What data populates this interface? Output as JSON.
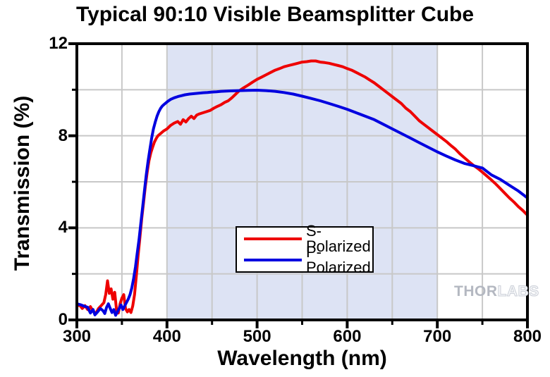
{
  "chart_data": {
    "type": "line",
    "title": "Typical 90:10 Visible Beamsplitter Cube",
    "xlabel": "Wavelength (nm)",
    "ylabel": "Transmission (%)",
    "xlim": [
      300,
      800
    ],
    "ylim": [
      0,
      12
    ],
    "x_major_ticks": [
      300,
      400,
      500,
      600,
      700,
      800
    ],
    "x_minor_ticks": [
      350,
      450,
      550,
      650,
      750
    ],
    "y_major_ticks": [
      0,
      4,
      8,
      12
    ],
    "y_minor_ticks": [
      2,
      6,
      10
    ],
    "grid": {
      "x_lines": [
        350,
        400,
        450,
        500,
        550,
        600,
        650,
        700,
        750
      ],
      "y_lines": [
        2,
        4,
        6,
        8,
        10
      ],
      "color": "#c8c8c8"
    },
    "shaded_band": {
      "x_from": 400,
      "x_to": 700,
      "color": "#dde3f4",
      "meaning": "visible wavelength range"
    },
    "legend": {
      "position": "inside-bottom-center"
    },
    "series": [
      {
        "name": "S-Polarized",
        "color": "#ee0000",
        "points": [
          [
            300,
            0.6
          ],
          [
            303,
            0.65
          ],
          [
            306,
            0.5
          ],
          [
            309,
            0.62
          ],
          [
            312,
            0.45
          ],
          [
            315,
            0.58
          ],
          [
            318,
            0.38
          ],
          [
            321,
            0.28
          ],
          [
            324,
            0.5
          ],
          [
            327,
            0.62
          ],
          [
            330,
            0.75
          ],
          [
            332,
            1.1
          ],
          [
            334,
            1.7
          ],
          [
            336,
            1.15
          ],
          [
            338,
            1.35
          ],
          [
            340,
            0.9
          ],
          [
            342,
            1.2
          ],
          [
            344,
            0.45
          ],
          [
            346,
            0.3
          ],
          [
            348,
            0.7
          ],
          [
            350,
            0.95
          ],
          [
            352,
            1.1
          ],
          [
            354,
            0.5
          ],
          [
            356,
            0.35
          ],
          [
            358,
            0.45
          ],
          [
            360,
            0.32
          ],
          [
            362,
            0.6
          ],
          [
            364,
            1.1
          ],
          [
            366,
            1.9
          ],
          [
            368,
            2.8
          ],
          [
            370,
            3.6
          ],
          [
            372,
            4.4
          ],
          [
            374,
            5.1
          ],
          [
            376,
            5.8
          ],
          [
            378,
            6.4
          ],
          [
            380,
            6.9
          ],
          [
            382,
            7.25
          ],
          [
            384,
            7.5
          ],
          [
            386,
            7.72
          ],
          [
            388,
            7.88
          ],
          [
            390,
            8.0
          ],
          [
            393,
            8.1
          ],
          [
            396,
            8.2
          ],
          [
            400,
            8.3
          ],
          [
            404,
            8.45
          ],
          [
            408,
            8.55
          ],
          [
            412,
            8.62
          ],
          [
            415,
            8.5
          ],
          [
            418,
            8.7
          ],
          [
            421,
            8.6
          ],
          [
            424,
            8.75
          ],
          [
            427,
            8.85
          ],
          [
            430,
            8.75
          ],
          [
            433,
            8.9
          ],
          [
            436,
            8.95
          ],
          [
            440,
            9.0
          ],
          [
            444,
            9.05
          ],
          [
            448,
            9.1
          ],
          [
            452,
            9.2
          ],
          [
            456,
            9.28
          ],
          [
            460,
            9.35
          ],
          [
            464,
            9.45
          ],
          [
            468,
            9.52
          ],
          [
            472,
            9.65
          ],
          [
            476,
            9.8
          ],
          [
            480,
            9.95
          ],
          [
            485,
            10.08
          ],
          [
            490,
            10.2
          ],
          [
            495,
            10.33
          ],
          [
            500,
            10.45
          ],
          [
            505,
            10.55
          ],
          [
            510,
            10.65
          ],
          [
            515,
            10.75
          ],
          [
            520,
            10.85
          ],
          [
            525,
            10.92
          ],
          [
            530,
            11.0
          ],
          [
            535,
            11.05
          ],
          [
            540,
            11.1
          ],
          [
            545,
            11.15
          ],
          [
            550,
            11.2
          ],
          [
            555,
            11.22
          ],
          [
            560,
            11.25
          ],
          [
            565,
            11.25
          ],
          [
            570,
            11.2
          ],
          [
            575,
            11.18
          ],
          [
            580,
            11.15
          ],
          [
            585,
            11.1
          ],
          [
            590,
            11.05
          ],
          [
            595,
            11.0
          ],
          [
            600,
            10.92
          ],
          [
            605,
            10.85
          ],
          [
            610,
            10.75
          ],
          [
            615,
            10.65
          ],
          [
            620,
            10.55
          ],
          [
            625,
            10.42
          ],
          [
            630,
            10.3
          ],
          [
            635,
            10.15
          ],
          [
            640,
            10.0
          ],
          [
            645,
            9.85
          ],
          [
            650,
            9.7
          ],
          [
            655,
            9.55
          ],
          [
            660,
            9.4
          ],
          [
            665,
            9.2
          ],
          [
            670,
            9.05
          ],
          [
            675,
            8.85
          ],
          [
            680,
            8.65
          ],
          [
            685,
            8.5
          ],
          [
            690,
            8.35
          ],
          [
            695,
            8.2
          ],
          [
            700,
            8.05
          ],
          [
            705,
            7.9
          ],
          [
            710,
            7.75
          ],
          [
            715,
            7.58
          ],
          [
            720,
            7.42
          ],
          [
            725,
            7.22
          ],
          [
            730,
            7.05
          ],
          [
            735,
            6.88
          ],
          [
            740,
            6.72
          ],
          [
            745,
            6.58
          ],
          [
            750,
            6.42
          ],
          [
            755,
            6.25
          ],
          [
            760,
            6.08
          ],
          [
            765,
            5.9
          ],
          [
            770,
            5.7
          ],
          [
            775,
            5.5
          ],
          [
            780,
            5.3
          ],
          [
            785,
            5.12
          ],
          [
            790,
            4.92
          ],
          [
            795,
            4.75
          ],
          [
            800,
            4.55
          ]
        ]
      },
      {
        "name": "P-Polarized",
        "color": "#0000e0",
        "points": [
          [
            300,
            0.7
          ],
          [
            304,
            0.66
          ],
          [
            308,
            0.6
          ],
          [
            312,
            0.55
          ],
          [
            315,
            0.3
          ],
          [
            318,
            0.45
          ],
          [
            320,
            0.22
          ],
          [
            323,
            0.35
          ],
          [
            326,
            0.5
          ],
          [
            329,
            0.4
          ],
          [
            331,
            0.28
          ],
          [
            333,
            0.55
          ],
          [
            335,
            0.7
          ],
          [
            337,
            0.5
          ],
          [
            339,
            0.32
          ],
          [
            341,
            0.45
          ],
          [
            343,
            0.2
          ],
          [
            345,
            0.35
          ],
          [
            347,
            0.5
          ],
          [
            349,
            0.65
          ],
          [
            351,
            0.45
          ],
          [
            353,
            0.6
          ],
          [
            355,
            0.75
          ],
          [
            357,
            0.9
          ],
          [
            359,
            1.1
          ],
          [
            361,
            1.4
          ],
          [
            363,
            1.8
          ],
          [
            365,
            2.3
          ],
          [
            367,
            2.9
          ],
          [
            369,
            3.5
          ],
          [
            371,
            4.2
          ],
          [
            373,
            4.9
          ],
          [
            375,
            5.6
          ],
          [
            377,
            6.3
          ],
          [
            379,
            6.9
          ],
          [
            381,
            7.4
          ],
          [
            383,
            7.9
          ],
          [
            385,
            8.3
          ],
          [
            387,
            8.6
          ],
          [
            389,
            8.85
          ],
          [
            391,
            9.05
          ],
          [
            393,
            9.2
          ],
          [
            395,
            9.3
          ],
          [
            398,
            9.4
          ],
          [
            401,
            9.5
          ],
          [
            404,
            9.58
          ],
          [
            408,
            9.65
          ],
          [
            412,
            9.7
          ],
          [
            416,
            9.74
          ],
          [
            420,
            9.78
          ],
          [
            425,
            9.81
          ],
          [
            430,
            9.83
          ],
          [
            435,
            9.85
          ],
          [
            440,
            9.87
          ],
          [
            445,
            9.88
          ],
          [
            450,
            9.9
          ],
          [
            455,
            9.91
          ],
          [
            460,
            9.93
          ],
          [
            470,
            9.95
          ],
          [
            480,
            9.96
          ],
          [
            490,
            9.97
          ],
          [
            500,
            9.98
          ],
          [
            510,
            9.96
          ],
          [
            520,
            9.93
          ],
          [
            530,
            9.88
          ],
          [
            540,
            9.81
          ],
          [
            550,
            9.72
          ],
          [
            560,
            9.62
          ],
          [
            570,
            9.52
          ],
          [
            580,
            9.4
          ],
          [
            590,
            9.28
          ],
          [
            600,
            9.15
          ],
          [
            610,
            9.0
          ],
          [
            620,
            8.85
          ],
          [
            630,
            8.7
          ],
          [
            640,
            8.5
          ],
          [
            650,
            8.3
          ],
          [
            660,
            8.1
          ],
          [
            670,
            7.9
          ],
          [
            680,
            7.7
          ],
          [
            690,
            7.5
          ],
          [
            700,
            7.3
          ],
          [
            710,
            7.12
          ],
          [
            720,
            6.95
          ],
          [
            730,
            6.8
          ],
          [
            740,
            6.7
          ],
          [
            745,
            6.65
          ],
          [
            750,
            6.6
          ],
          [
            760,
            6.3
          ],
          [
            770,
            6.1
          ],
          [
            780,
            5.85
          ],
          [
            790,
            5.6
          ],
          [
            800,
            5.3
          ]
        ]
      }
    ]
  },
  "watermark": {
    "part1": "THOR",
    "part2": "LABS"
  },
  "layout_hints": {
    "frame_color": "#000000",
    "background": "#ffffff"
  }
}
